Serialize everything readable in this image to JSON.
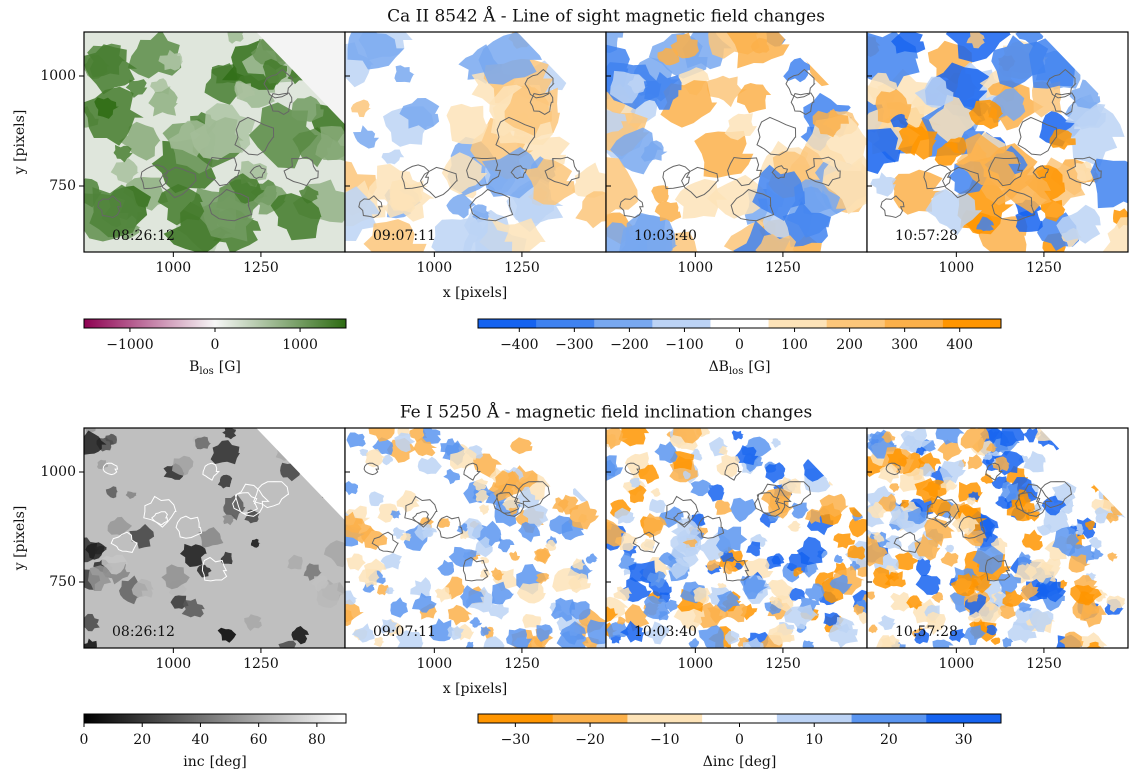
{
  "chart_data": [
    {
      "type": "image-grid",
      "title": "Ca II 8542 Å - Line of sight magnetic field changes",
      "xlabel": "x [pixels]",
      "ylabel": "y [pixels]",
      "xlim": [
        745,
        1490
      ],
      "ylim": [
        600,
        1100
      ],
      "xticks": [
        1000,
        1250
      ],
      "yticks": [
        750,
        1000
      ],
      "times": [
        "08:26:12",
        "09:07:11",
        "10:03:40",
        "10:57:28"
      ],
      "colorbars": [
        {
          "label": {
            "main": "B",
            "sub": "los",
            "unit": "[G]"
          },
          "clim": [
            -1540,
            1540
          ],
          "ticks": [
            {
              "value": -1000,
              "label": "−1000"
            },
            0,
            1000
          ],
          "discrete": false,
          "colors": [
            "#8e0152",
            "#f7f7f7",
            "#2d6b12"
          ]
        },
        {
          "label": {
            "main": "ΔB",
            "sub": "los",
            "unit": "[G]"
          },
          "clim": [
            -475,
            475
          ],
          "ticks": [
            {
              "value": -400,
              "label": "−400"
            },
            {
              "value": -300,
              "label": "−300"
            },
            {
              "value": -200,
              "label": "−200"
            },
            {
              "value": -100,
              "label": "−100"
            },
            0,
            100,
            200,
            300,
            400
          ],
          "discrete": true,
          "colors": [
            "#1563f0",
            "#3f82f0",
            "#78a8f0",
            "#bcd3f5",
            "#ffffff",
            "#fde3b8",
            "#fcc67a",
            "#fbb04a",
            "#ff9500"
          ]
        }
      ]
    },
    {
      "type": "image-grid",
      "title": "Fe I 5250 Å - magnetic field inclination changes",
      "xlabel": "x [pixels]",
      "ylabel": "y [pixels]",
      "xlim": [
        745,
        1490
      ],
      "ylim": [
        600,
        1100
      ],
      "xticks": [
        1000,
        1250
      ],
      "yticks": [
        750,
        1000
      ],
      "times": [
        "08:26:12",
        "09:07:11",
        "10:03:40",
        "10:57:28"
      ],
      "colorbars": [
        {
          "label": {
            "main": "inc",
            "sub": "",
            "unit": "[deg]"
          },
          "clim": [
            0,
            90
          ],
          "ticks": [
            0,
            20,
            40,
            60,
            80
          ],
          "discrete": false,
          "colors": [
            "#000000",
            "#ffffff"
          ]
        },
        {
          "label": {
            "main": "Δinc",
            "sub": "",
            "unit": "[deg]"
          },
          "clim": [
            -35,
            35
          ],
          "ticks": [
            {
              "value": -30,
              "label": "−30"
            },
            {
              "value": -20,
              "label": "−20"
            },
            {
              "value": -10,
              "label": "−10"
            },
            0,
            10,
            20,
            30
          ],
          "discrete": true,
          "colors": [
            "#ff9500",
            "#fbb04a",
            "#fde3b8",
            "#ffffff",
            "#bcd3f5",
            "#5a95f0",
            "#1563f0"
          ]
        }
      ]
    }
  ]
}
